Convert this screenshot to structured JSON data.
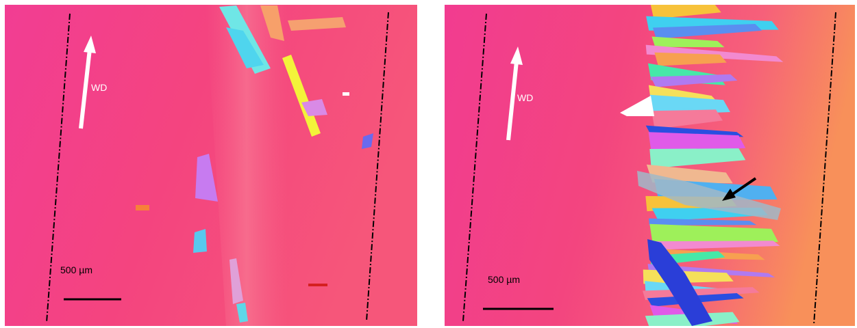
{
  "panels": [
    {
      "direction_label": "WD",
      "scale_label": "500 µm"
    },
    {
      "direction_label": "WD",
      "scale_label": "500 µm"
    }
  ]
}
